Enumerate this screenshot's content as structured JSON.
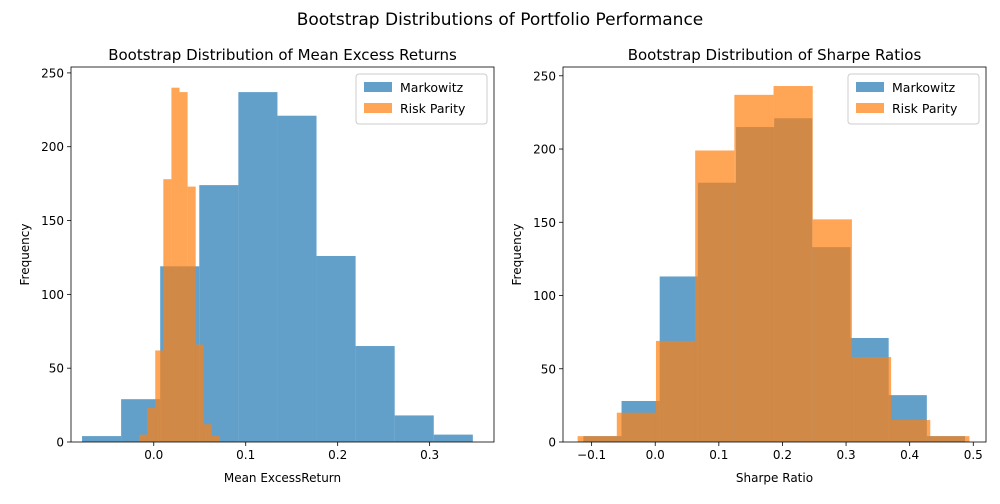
{
  "figure": {
    "suptitle": "Bootstrap Distributions of Portfolio Performance"
  },
  "colors": {
    "markowitz": "#1f77b4",
    "risk_parity": "#ff7f0e"
  },
  "chart_data": [
    {
      "type": "histogram",
      "title": "Bootstrap Distribution of Mean Excess Returns",
      "xlabel": "Mean ExcessReturn",
      "ylabel": "Frequency",
      "xlim": [
        -0.09,
        0.37
      ],
      "ylim": [
        0,
        254
      ],
      "xticks": [
        0.0,
        0.1,
        0.2,
        0.3
      ],
      "xtick_labels": [
        "0.0",
        "0.1",
        "0.2",
        "0.3"
      ],
      "yticks": [
        0,
        50,
        100,
        150,
        200,
        250
      ],
      "ytick_labels": [
        "0",
        "50",
        "100",
        "150",
        "200",
        "250"
      ],
      "legend": {
        "loc": "upper right",
        "entries": [
          "Markowitz",
          "Risk Parity"
        ]
      },
      "alpha": 0.7,
      "series": [
        {
          "name": "Markowitz",
          "bin_edges": [
            -0.078,
            -0.0355,
            0.007,
            0.0495,
            0.092,
            0.1345,
            0.177,
            0.2195,
            0.262,
            0.3045,
            0.347
          ],
          "counts": [
            4,
            29,
            119,
            174,
            237,
            221,
            126,
            65,
            18,
            5
          ]
        },
        {
          "name": "Risk Parity",
          "bin_edges": [
            -0.016,
            -0.0072,
            0.0016,
            0.0104,
            0.0192,
            0.028,
            0.0368,
            0.0456,
            0.0544,
            0.0632,
            0.072
          ],
          "counts": [
            5,
            23,
            62,
            178,
            240,
            237,
            173,
            66,
            12,
            4
          ]
        }
      ]
    },
    {
      "type": "histogram",
      "title": "Bootstrap Distribution of Sharpe Ratios",
      "xlabel": "Sharpe Ratio",
      "ylabel": "Frequency",
      "xlim": [
        -0.145,
        0.52
      ],
      "ylim": [
        0,
        256
      ],
      "xticks": [
        -0.1,
        0.0,
        0.1,
        0.2,
        0.3,
        0.4,
        0.5
      ],
      "xtick_labels": [
        "−0.1",
        "0.0",
        "0.1",
        "0.2",
        "0.3",
        "0.4",
        "0.5"
      ],
      "yticks": [
        0,
        50,
        100,
        150,
        200,
        250
      ],
      "ytick_labels": [
        "0",
        "50",
        "100",
        "150",
        "200",
        "250"
      ],
      "legend": {
        "loc": "upper right",
        "entries": [
          "Markowitz",
          "Risk Parity"
        ]
      },
      "alpha": 0.7,
      "series": [
        {
          "name": "Markowitz",
          "bin_edges": [
            -0.113,
            -0.053,
            0.007,
            0.067,
            0.127,
            0.187,
            0.247,
            0.307,
            0.367,
            0.427,
            0.487
          ],
          "counts": [
            4,
            28,
            113,
            177,
            215,
            221,
            133,
            71,
            32,
            4
          ]
        },
        {
          "name": "Risk Parity",
          "bin_edges": [
            -0.122,
            -0.0604,
            0.0012,
            0.0628,
            0.1244,
            0.186,
            0.2476,
            0.3092,
            0.3708,
            0.4324,
            0.494
          ],
          "counts": [
            4,
            20,
            69,
            199,
            237,
            243,
            152,
            58,
            15,
            4
          ]
        }
      ]
    }
  ]
}
